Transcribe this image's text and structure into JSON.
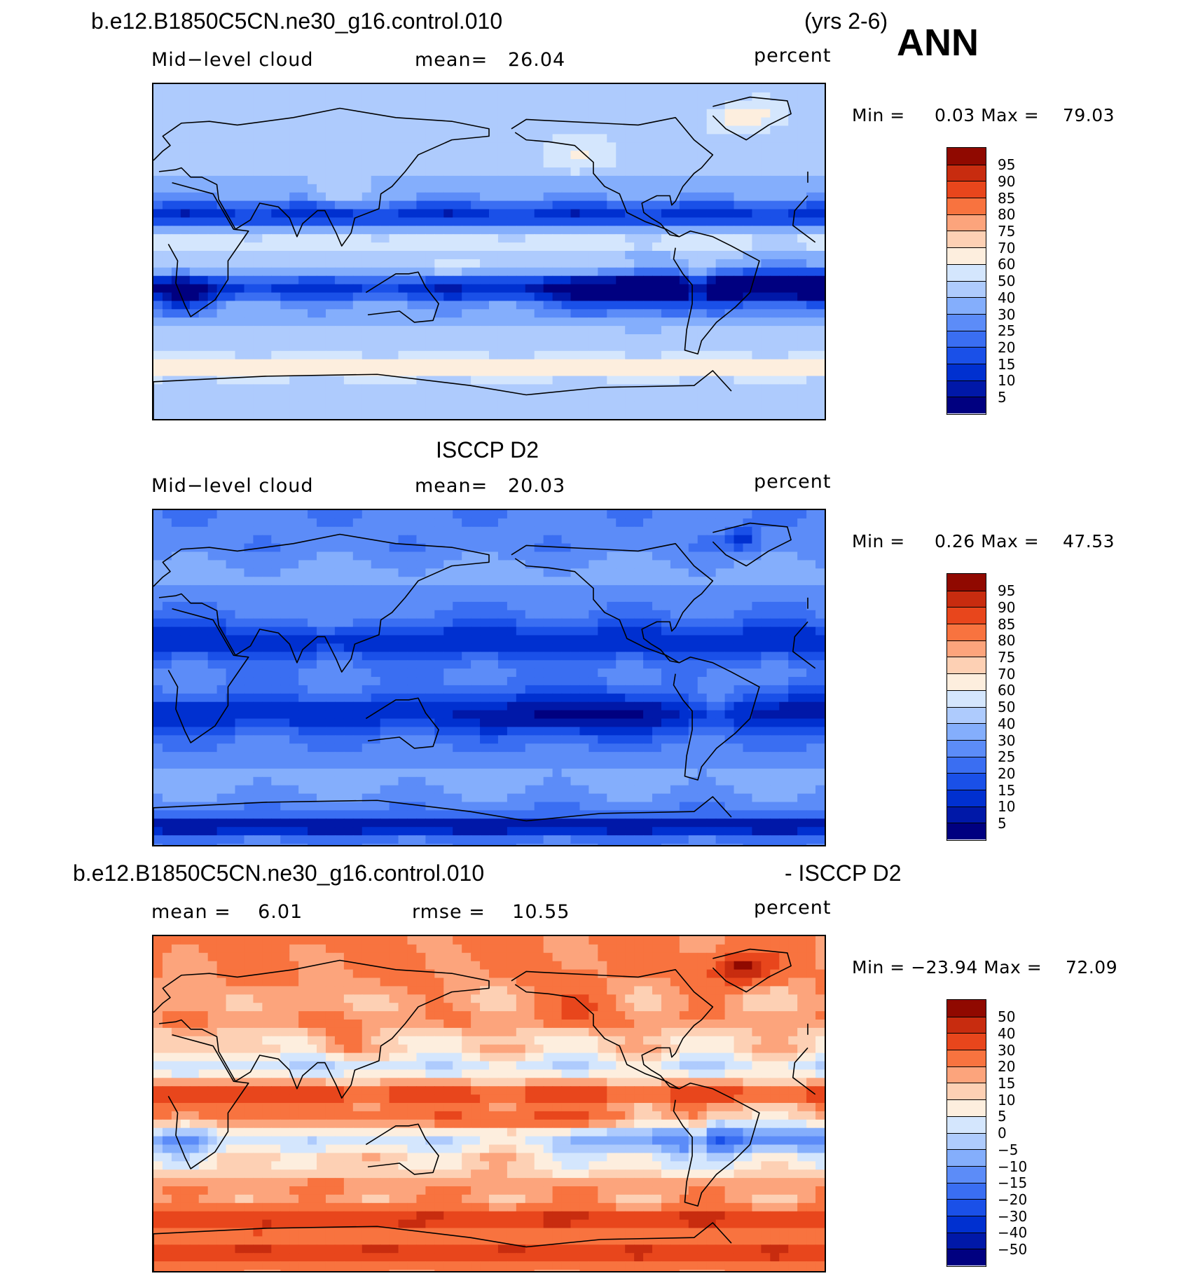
{
  "header": {
    "case_name": "b.e12.B1850C5CN.ne30_g16.control.010",
    "years": "(yrs 2-6)",
    "season": "ANN"
  },
  "panel_top": {
    "variable": "Mid−level cloud",
    "mean": "mean=   26.04",
    "units": "percent",
    "minmax": "Min =     0.03 Max =    79.03"
  },
  "panel_mid": {
    "title": "ISCCP D2",
    "variable": "Mid−level cloud",
    "mean": "mean=   20.03",
    "units": "percent",
    "minmax": "Min =     0.26 Max =    47.53"
  },
  "panel_bot": {
    "title_left": "b.e12.B1850C5CN.ne30_g16.control.010",
    "title_right": "- ISCCP D2",
    "mean": "mean =    6.01",
    "rmse": "rmse =    10.55",
    "units": "percent",
    "minmax": "Min = −23.94 Max =    72.09"
  },
  "colors": {
    "abs_scale": [
      "#000080",
      "#0018a8",
      "#0030d0",
      "#1a50e8",
      "#3a6ef2",
      "#5c8cf8",
      "#84aefc",
      "#aecbfd",
      "#d4e6fd",
      "#fdeede",
      "#fdd0b4",
      "#fca47c",
      "#f8733f",
      "#e8461c",
      "#c82c0f",
      "#900900"
    ],
    "diff_scale": [
      "#000080",
      "#0018a8",
      "#0030d0",
      "#1a50e8",
      "#3a6ef2",
      "#5c8cf8",
      "#84aefc",
      "#aecbfd",
      "#d4e6fd",
      "#fdeede",
      "#fdd0b4",
      "#fca47c",
      "#f8733f",
      "#e8461c",
      "#c82c0f",
      "#900900"
    ]
  },
  "chart_data": [
    {
      "type": "heatmap",
      "title": "b.e12.B1850C5CN.ne30_g16.control.010 (yrs 2-6)",
      "subtitle": "Mid−level cloud",
      "units": "percent",
      "mean": 26.04,
      "min": 0.03,
      "max": 79.03,
      "colorbar_levels": [
        5,
        10,
        15,
        20,
        25,
        30,
        40,
        50,
        60,
        70,
        75,
        80,
        85,
        90,
        95
      ],
      "colorbar_labels": [
        "95",
        "90",
        "85",
        "80",
        "75",
        "70",
        "60",
        "50",
        "40",
        "30",
        "25",
        "20",
        "15",
        "10",
        "5"
      ]
    },
    {
      "type": "heatmap",
      "title": "ISCCP D2",
      "subtitle": "Mid−level cloud",
      "units": "percent",
      "mean": 20.03,
      "min": 0.26,
      "max": 47.53,
      "colorbar_levels": [
        5,
        10,
        15,
        20,
        25,
        30,
        40,
        50,
        60,
        70,
        75,
        80,
        85,
        90,
        95
      ],
      "colorbar_labels": [
        "95",
        "90",
        "85",
        "80",
        "75",
        "70",
        "60",
        "50",
        "40",
        "30",
        "25",
        "20",
        "15",
        "10",
        "5"
      ]
    },
    {
      "type": "heatmap",
      "title": "b.e12.B1850C5CN.ne30_g16.control.010 - ISCCP D2",
      "units": "percent",
      "mean": 6.01,
      "rmse": 10.55,
      "min": -23.94,
      "max": 72.09,
      "colorbar_levels": [
        -50,
        -40,
        -30,
        -20,
        -15,
        -10,
        -5,
        0,
        5,
        10,
        15,
        20,
        30,
        40,
        50
      ],
      "colorbar_labels": [
        "50",
        "40",
        "30",
        "20",
        "15",
        "10",
        "5",
        "0",
        "−5",
        "−10",
        "−15",
        "−20",
        "−30",
        "−40",
        "−50"
      ]
    }
  ]
}
